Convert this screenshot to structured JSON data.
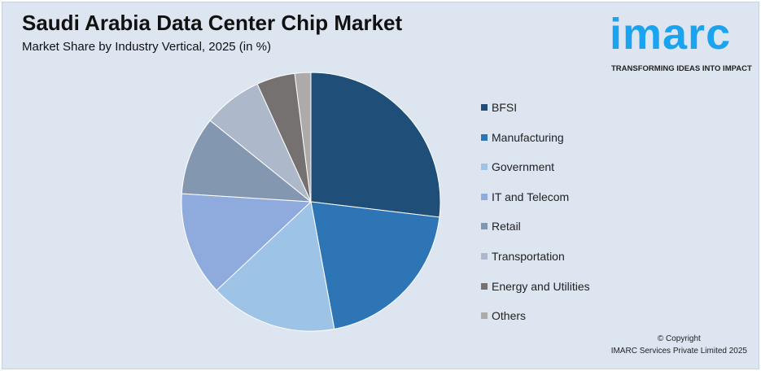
{
  "header": {
    "title": "Saudi Arabia Data Center Chip Market",
    "subtitle": "Market Share by Industry Vertical, 2025 (in %)"
  },
  "logo": {
    "word": "imarc",
    "tagline": "TRANSFORMING IDEAS INTO IMPACT",
    "color": "#1aa3ee"
  },
  "chart_data": {
    "type": "pie",
    "title": "Saudi Arabia Data Center Chip Market",
    "subtitle": "Market Share by Industry Vertical, 2025 (in %)",
    "legend_position": "right",
    "categories": [
      "BFSI",
      "Manufacturing",
      "Government",
      "IT and Telecom",
      "Retail",
      "Transportation",
      "Energy and Utilities",
      "Others"
    ],
    "values": [
      26.9,
      20.2,
      15.9,
      13.0,
      9.8,
      7.4,
      4.8,
      2.0
    ],
    "colors": [
      "#1f4e79",
      "#2e75b6",
      "#9dc3e6",
      "#8faadc",
      "#8497b0",
      "#adb9ca",
      "#767171",
      "#aeaaaa"
    ]
  },
  "footer": {
    "copyright": "© Copyright",
    "company": "IMARC Services Private Limited 2025"
  }
}
